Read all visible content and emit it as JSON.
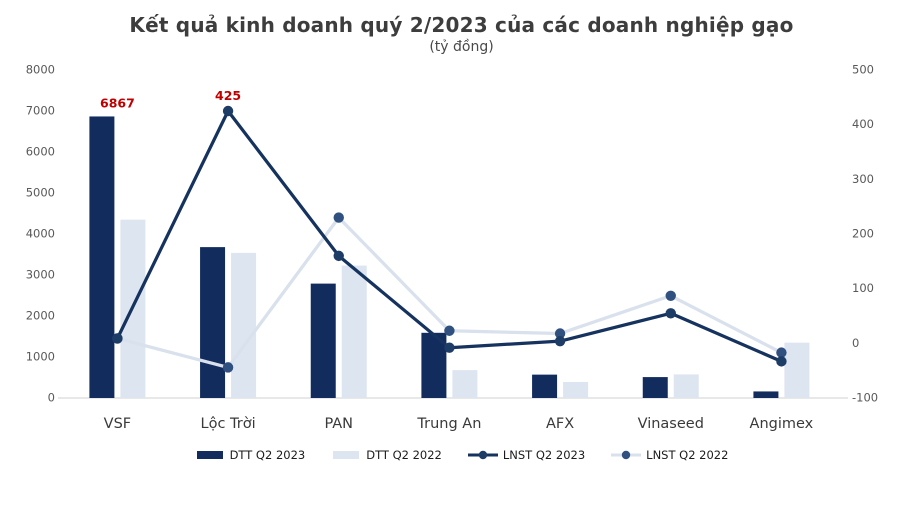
{
  "header": {
    "title": "Kết quả kinh doanh quý 2/2023 của các doanh nghiệp gạo",
    "subtitle": "(tỷ đồng)"
  },
  "chart_data": {
    "type": "combo bar+line",
    "title": "Kết quả kinh doanh quý 2/2023 của các doanh nghiệp gạo",
    "subtitle_unit": "(tỷ đồng)",
    "categories": [
      "VSF",
      "Lộc Trời",
      "PAN",
      "Trung An",
      "AFX",
      "Vinaseed",
      "Angimex"
    ],
    "series": [
      {
        "name": "DTT Q2 2023",
        "type": "bar",
        "axis": "left",
        "color": "#122c5e",
        "values": [
          6867,
          3680,
          2790,
          1590,
          570,
          510,
          160
        ]
      },
      {
        "name": "DTT Q2 2022",
        "type": "bar",
        "axis": "left",
        "color": "#dde5f0",
        "values": [
          4350,
          3540,
          3230,
          680,
          390,
          575,
          1350
        ]
      },
      {
        "name": "LNST Q2 2023",
        "type": "line",
        "axis": "right",
        "color": "#16335f",
        "marker_color": "#1d3c66",
        "values": [
          9,
          425,
          160,
          -8,
          4,
          55,
          -33
        ]
      },
      {
        "name": "LNST Q2 2022",
        "type": "line",
        "axis": "right",
        "color": "#d9e1ed",
        "marker_color": "#30517f",
        "values": [
          9,
          -44,
          230,
          23,
          18,
          87,
          -17
        ]
      }
    ],
    "left_axis": {
      "min": 0,
      "max": 8000,
      "ticks": [
        8000,
        7000,
        6000,
        5000,
        4000,
        3000,
        2000,
        1000,
        0
      ]
    },
    "right_axis": {
      "min": -100,
      "max": 500,
      "ticks": [
        500,
        400,
        300,
        200,
        100,
        0,
        -100
      ]
    },
    "annotations": [
      {
        "text": "6867",
        "color": "#c00000",
        "series_index": 0,
        "category_index": 0,
        "anchor": "bar-top"
      },
      {
        "text": "425",
        "color": "#c00000",
        "series_index": 2,
        "category_index": 1,
        "anchor": "point"
      }
    ],
    "legend_position": "bottom",
    "grid": "baseline-only",
    "baseline_color": "#d9d9d9"
  }
}
